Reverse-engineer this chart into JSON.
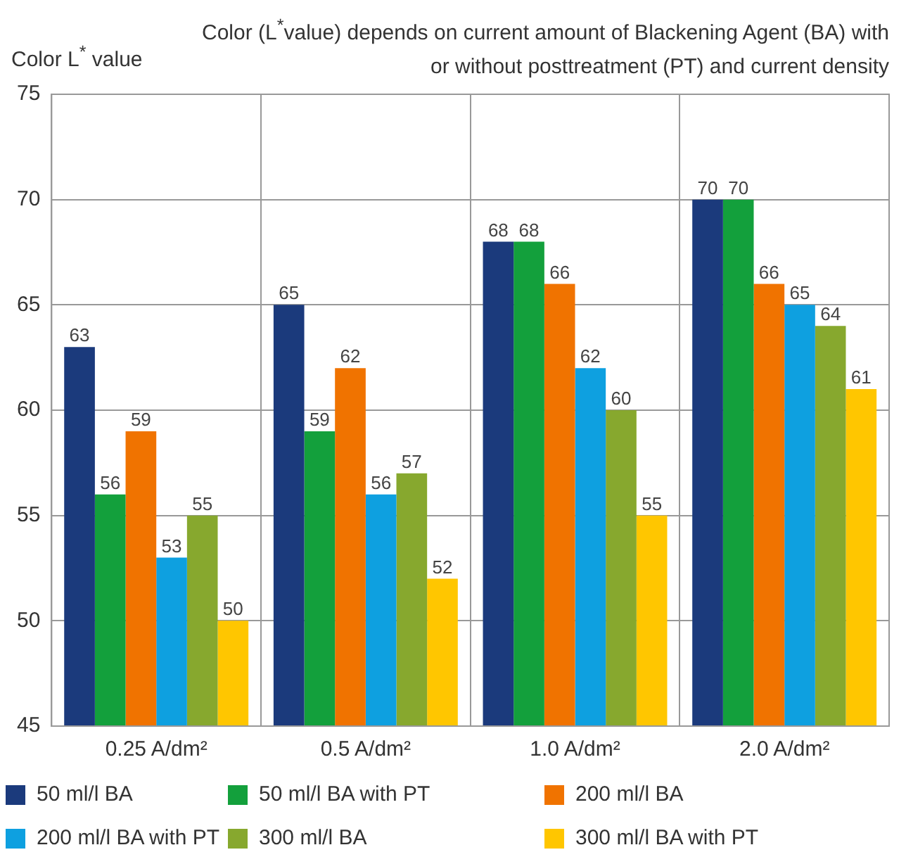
{
  "chart_data": {
    "type": "bar",
    "title": "Color (L$^{*}$value) depends on current amount of Blackening Agent (BA) with or without posttreatment (PT) and current density",
    "ylabel": "Color L$^{*}$ value",
    "categories": [
      "0.25 A/dm²",
      "0.5 A/dm²",
      "1.0 A/dm²",
      "2.0 A/dm²"
    ],
    "series": [
      {
        "name": "50 ml/l BA",
        "color": "#1b3a7c",
        "values": [
          63,
          65,
          68,
          70
        ]
      },
      {
        "name": "50 ml/l BA with PT",
        "color": "#13a03c",
        "values": [
          56,
          59,
          68,
          70
        ]
      },
      {
        "name": "200 ml/l BA",
        "color": "#f07300",
        "values": [
          59,
          62,
          66,
          66
        ]
      },
      {
        "name": "200 ml/l BA with PT",
        "color": "#0ea0e0",
        "values": [
          53,
          56,
          62,
          65
        ]
      },
      {
        "name": "300 ml/l BA",
        "color": "#87a82e",
        "values": [
          55,
          57,
          60,
          64
        ]
      },
      {
        "name": "300 ml/l BA with PT",
        "color": "#ffc600",
        "values": [
          50,
          52,
          55,
          61
        ]
      }
    ],
    "ylim": [
      45,
      75
    ],
    "yticks": [
      45,
      50,
      55,
      60,
      65,
      70,
      75
    ],
    "grid": true,
    "legend": "bottom",
    "data_labels": true
  }
}
